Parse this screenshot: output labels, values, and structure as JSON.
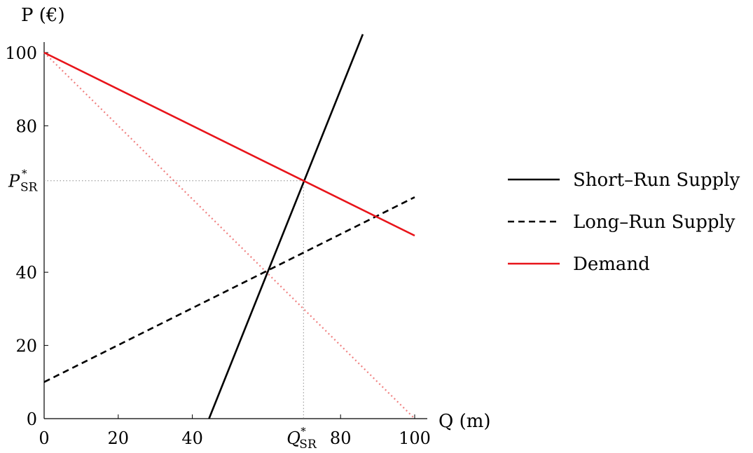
{
  "chart_data": {
    "type": "line",
    "xlabel": "Q (m)",
    "ylabel": "P (€)",
    "xlim": [
      0,
      100
    ],
    "ylim": [
      0,
      100
    ],
    "x_ticks": [
      {
        "value": 0,
        "label": "0"
      },
      {
        "value": 20,
        "label": "20"
      },
      {
        "value": 40,
        "label": "40"
      },
      {
        "value": 80,
        "label": "80"
      },
      {
        "value": 100,
        "label": "100"
      }
    ],
    "y_ticks": [
      {
        "value": 0,
        "label": "0"
      },
      {
        "value": 20,
        "label": "20"
      },
      {
        "value": 40,
        "label": "40"
      },
      {
        "value": 80,
        "label": "80"
      },
      {
        "value": 100,
        "label": "100"
      }
    ],
    "grid": false,
    "legend_position": "right",
    "series": [
      {
        "name": "Short–Run Supply",
        "color": "#000000",
        "style": "solid",
        "points": [
          [
            44.5,
            0
          ],
          [
            86.0,
            105
          ]
        ]
      },
      {
        "name": "Long–Run Supply",
        "color": "#000000",
        "style": "dashed",
        "points": [
          [
            0,
            10
          ],
          [
            100,
            60.5
          ]
        ]
      },
      {
        "name": "Demand",
        "color": "#e8141a",
        "style": "solid",
        "points": [
          [
            0,
            100
          ],
          [
            100,
            50
          ]
        ]
      }
    ],
    "unlabeled_series": [
      {
        "color": "#f08080",
        "style": "dotted",
        "points": [
          [
            0,
            100
          ],
          [
            100,
            0
          ]
        ]
      }
    ],
    "equilibrium": {
      "x": 70,
      "y": 65,
      "x_label": {
        "main": "Q",
        "sub": "SR",
        "sup": "*"
      },
      "y_label": {
        "main": "P",
        "sub": "SR",
        "sup": "*"
      }
    }
  }
}
